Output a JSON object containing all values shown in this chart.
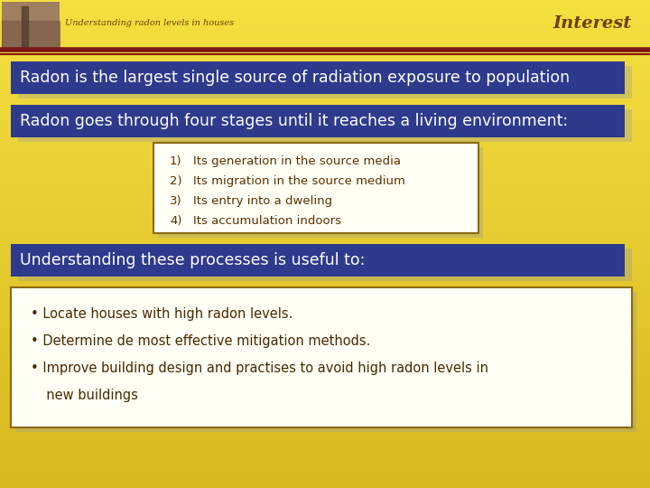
{
  "bg_color": "#F0D020",
  "header_subtitle": "Understanding radon levels in houses",
  "header_title": "Interest",
  "header_line_color1": "#8B1A1A",
  "header_line_color2": "#8B1A1A",
  "blue_box_color": "#2E3A8C",
  "blue_box_text_color": "#FFFFFF",
  "white_box_bg": "#FFFFF5",
  "white_box_border": "#8B6914",
  "numbered_text_color": "#5C3000",
  "bullet_text_color": "#4A2800",
  "shadow_color": "#999999",
  "header_img_color": "#8B7355",
  "box1_text": "Radon is the largest single source of radiation exposure to population",
  "box2_text": "Radon goes through four stages until it reaches a living environment:",
  "numbered_items": [
    "Its generation in the source media",
    "Its migration in the source medium",
    "Its entry into a dweling",
    "Its accumulation indoors"
  ],
  "box3_text": "Understanding these processes is useful to:",
  "bullet_line1": "• Locate houses with high radon levels.",
  "bullet_line2": "• Determine de most effective mitigation methods.",
  "bullet_line3": "• Improve building design and practises to avoid high radon levels in",
  "bullet_line4": "  new buildings"
}
